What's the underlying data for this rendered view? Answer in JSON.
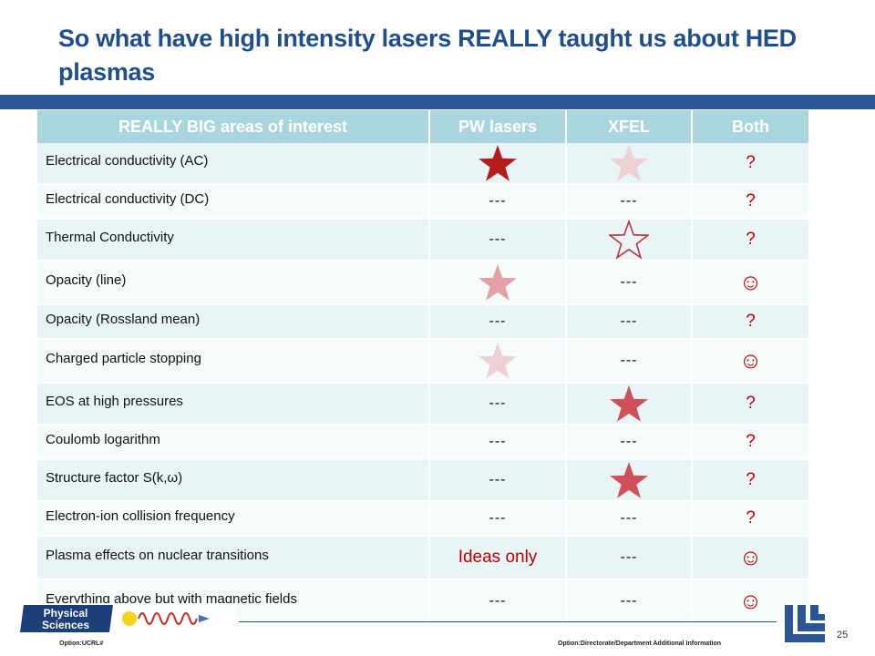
{
  "slide": {
    "title": "So what have high intensity lasers REALLY taught us about HED plasmas",
    "page_number": "25",
    "footer_left": "Option:UCRL#",
    "footer_right": "Option:Directorate/Department  Additional Information"
  },
  "logo": {
    "line1": "Physical",
    "line2": "Sciences"
  },
  "table": {
    "headers": [
      "REALLY BIG areas of interest",
      "PW lasers",
      "XFEL",
      "Both"
    ],
    "rows": [
      {
        "topic": "Electrical conductivity (AC)",
        "pw": {
          "kind": "star",
          "variant": "dark"
        },
        "xfel": {
          "kind": "star",
          "variant": "faint"
        },
        "both": {
          "kind": "text",
          "text": "?"
        }
      },
      {
        "topic": "Electrical conductivity (DC)",
        "pw": {
          "kind": "text",
          "text": "---"
        },
        "xfel": {
          "kind": "text",
          "text": "---"
        },
        "both": {
          "kind": "text",
          "text": "?"
        }
      },
      {
        "topic": "Thermal Conductivity",
        "pw": {
          "kind": "text",
          "text": "---"
        },
        "xfel": {
          "kind": "star",
          "variant": "outline"
        },
        "both": {
          "kind": "text",
          "text": "?"
        }
      },
      {
        "topic": "Opacity (line)",
        "pw": {
          "kind": "star",
          "variant": "light"
        },
        "xfel": {
          "kind": "text",
          "text": "---"
        },
        "both": {
          "kind": "text",
          "text": "☺"
        }
      },
      {
        "topic": "Opacity (Rossland mean)",
        "pw": {
          "kind": "text",
          "text": "---"
        },
        "xfel": {
          "kind": "text",
          "text": "---"
        },
        "both": {
          "kind": "text",
          "text": "?"
        }
      },
      {
        "topic": "Charged particle stopping",
        "pw": {
          "kind": "star",
          "variant": "faint"
        },
        "xfel": {
          "kind": "text",
          "text": "---"
        },
        "both": {
          "kind": "text",
          "text": "☺"
        }
      },
      {
        "topic": "EOS at high pressures",
        "pw": {
          "kind": "text",
          "text": "---"
        },
        "xfel": {
          "kind": "star",
          "variant": "medium"
        },
        "both": {
          "kind": "text",
          "text": "?"
        }
      },
      {
        "topic": "Coulomb logarithm",
        "pw": {
          "kind": "text",
          "text": "---"
        },
        "xfel": {
          "kind": "text",
          "text": "---"
        },
        "both": {
          "kind": "text",
          "text": "?"
        }
      },
      {
        "topic": "Structure factor S(k,ω)",
        "pw": {
          "kind": "text",
          "text": "---"
        },
        "xfel": {
          "kind": "star",
          "variant": "medium"
        },
        "both": {
          "kind": "text",
          "text": "?"
        }
      },
      {
        "topic": "Electron-ion collision frequency",
        "pw": {
          "kind": "text",
          "text": "---"
        },
        "xfel": {
          "kind": "text",
          "text": "---"
        },
        "both": {
          "kind": "text",
          "text": "?"
        }
      },
      {
        "topic": "Plasma effects on nuclear transitions",
        "pw": {
          "kind": "text",
          "text": "Ideas only"
        },
        "xfel": {
          "kind": "text",
          "text": "---"
        },
        "both": {
          "kind": "text",
          "text": "☺"
        }
      },
      {
        "topic": "Everything above but with magnetic fields",
        "pw": {
          "kind": "text",
          "text": "---"
        },
        "xfel": {
          "kind": "text",
          "text": "---"
        },
        "both": {
          "kind": "text",
          "text": "☺"
        }
      }
    ]
  },
  "colors": {
    "title": "#1f4e8f",
    "bar": "#2c5595",
    "header_bg": "#a9d6de",
    "accent_red": "#c00000",
    "star_dark": "#b71c1c",
    "star_medium": "#d0505a",
    "star_light": "#e3a0a6",
    "star_faint": "#ecd0d3",
    "star_outline": "#c0303a"
  }
}
